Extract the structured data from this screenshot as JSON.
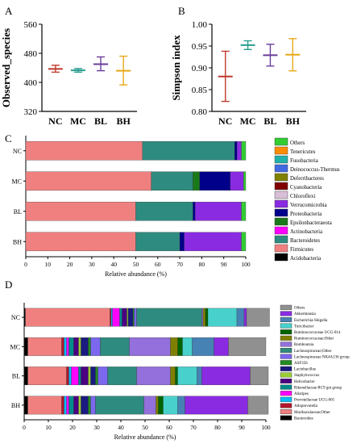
{
  "panel_labels": {
    "A": "A",
    "B": "B",
    "C": "C",
    "D": "D"
  },
  "chart_data": [
    {
      "id": "A",
      "type": "errorbar",
      "ylabel": "Observed_species",
      "categories": [
        "NC",
        "MC",
        "BL",
        "BH"
      ],
      "colors": [
        "#c0392b",
        "#2a9d8f",
        "#6a3d9a",
        "#e6a817"
      ],
      "mean": [
        437,
        433,
        450,
        432
      ],
      "err_low": [
        428,
        428,
        432,
        393
      ],
      "err_high": [
        447,
        438,
        470,
        472
      ],
      "ylim": [
        320,
        560
      ],
      "yticks": [
        "320",
        "400",
        "480",
        "560"
      ]
    },
    {
      "id": "B",
      "type": "errorbar",
      "ylabel": "Simpson index",
      "categories": [
        "NC",
        "MC",
        "BL",
        "BH"
      ],
      "colors": [
        "#c0392b",
        "#2a9d8f",
        "#6a3d9a",
        "#e6a817"
      ],
      "mean": [
        0.88,
        0.952,
        0.929,
        0.93
      ],
      "err_low": [
        0.823,
        0.942,
        0.904,
        0.893
      ],
      "err_high": [
        0.938,
        0.962,
        0.954,
        0.967
      ],
      "ylim": [
        0.8,
        1.0
      ],
      "yticks": [
        "0.80",
        "0.85",
        "0.90",
        "0.95",
        "1.00"
      ]
    },
    {
      "id": "C",
      "type": "bar",
      "stacked": true,
      "orientation": "horizontal",
      "xlabel": "Relative abundance (%)",
      "xlim": [
        0,
        100
      ],
      "xticks": [
        "0",
        "10",
        "20",
        "30",
        "40",
        "50",
        "60",
        "70",
        "80",
        "90",
        "100"
      ],
      "categories": [
        "NC",
        "MC",
        "BL",
        "BH"
      ],
      "series": [
        {
          "name": "Acidobacteria",
          "color": "#000000",
          "values": [
            0,
            0,
            0,
            0
          ]
        },
        {
          "name": "Firmicutes",
          "color": "#f08080",
          "values": [
            53,
            57,
            50,
            50
          ]
        },
        {
          "name": "Bacteroidetes",
          "color": "#2e8b7f",
          "values": [
            42,
            19,
            26,
            20
          ]
        },
        {
          "name": "Actinobacteria",
          "color": "#ff00ff",
          "values": [
            0,
            0,
            0,
            0
          ]
        },
        {
          "name": "Epsilonbacteraeota",
          "color": "#1a7a1a",
          "values": [
            0,
            3,
            0,
            0
          ]
        },
        {
          "name": "Proteobacteria",
          "color": "#00008b",
          "values": [
            1,
            14,
            1,
            2
          ]
        },
        {
          "name": "Verrucomicrobia",
          "color": "#8a2be2",
          "values": [
            2,
            6,
            21,
            26
          ]
        },
        {
          "name": "Chloroflexi",
          "color": "#d8bfd8",
          "values": [
            0,
            0,
            0,
            0
          ]
        },
        {
          "name": "Cyanobacteria",
          "color": "#800000",
          "values": [
            0,
            0,
            0,
            0
          ]
        },
        {
          "name": "Deferribacteres",
          "color": "#808000",
          "values": [
            0,
            0,
            0,
            0
          ]
        },
        {
          "name": "Deinococcus-Thermus",
          "color": "#4169e1",
          "values": [
            0,
            0,
            0,
            0
          ]
        },
        {
          "name": "Fusobacteria",
          "color": "#20b2aa",
          "values": [
            0,
            0,
            0,
            0
          ]
        },
        {
          "name": "Tenericutes",
          "color": "#ff8c00",
          "values": [
            0,
            0,
            0,
            0
          ]
        },
        {
          "name": "Others",
          "color": "#32cd32",
          "values": [
            2,
            1,
            2,
            2
          ]
        }
      ],
      "legend_order": [
        "Others",
        "Tenericutes",
        "Fusobacteria",
        "Deinococcus-Thermus",
        "Deferribacteres",
        "Cyanobacteria",
        "Chloroflexi",
        "Verrucomicrobia",
        "Proteobacteria",
        "Epsilonbacteraeota",
        "Actinobacteria",
        "Bacteroidetes",
        "Firmicutes",
        "Acidobacteria"
      ],
      "legend_position": "right"
    },
    {
      "id": "D",
      "type": "bar",
      "stacked": true,
      "orientation": "horizontal",
      "xlabel": "Relative abundance (%)",
      "xlim": [
        0,
        100
      ],
      "xticks": [
        "0",
        "10",
        "20",
        "30",
        "40",
        "50",
        "60",
        "70",
        "80",
        "90",
        "100"
      ],
      "categories": [
        "NC",
        "MC",
        "BL",
        "BH"
      ],
      "series": [
        {
          "name": "Bacteroides",
          "color": "#000000",
          "values": [
            0.5,
            1.5,
            1.5,
            1.5
          ]
        },
        {
          "name": "Muribaculaceae;Other",
          "color": "#f08080",
          "values": [
            35,
            14,
            16,
            14
          ]
        },
        {
          "name": "Alloprevotella",
          "color": "#b2182b",
          "values": [
            0.5,
            1,
            1,
            1
          ]
        },
        {
          "name": "Prevotellaceae UCG-001",
          "color": "#00bfff",
          "values": [
            0.5,
            1,
            1,
            1
          ]
        },
        {
          "name": "Alistipes",
          "color": "#ff00ff",
          "values": [
            3,
            1,
            3,
            1
          ]
        },
        {
          "name": "Rikenellaceae RC9 gut group",
          "color": "#008b8b",
          "values": [
            1,
            2,
            1,
            2
          ]
        },
        {
          "name": "Helicobacter",
          "color": "#4b0082",
          "values": [
            2,
            2,
            3,
            2
          ]
        },
        {
          "name": "Staphylococcus",
          "color": "#9acd32",
          "values": [
            0.5,
            1,
            1,
            1
          ]
        },
        {
          "name": "Lactobacillus",
          "color": "#1a1a80",
          "values": [
            2,
            3,
            2,
            3
          ]
        },
        {
          "name": "ASF356",
          "color": "#228b22",
          "values": [
            0.5,
            1,
            1,
            1
          ]
        },
        {
          "name": "Lachnospiraceae NK4A136 group",
          "color": "#7b68ee",
          "values": [
            1,
            4,
            4,
            2
          ]
        },
        {
          "name": "Lachnospiraceae;Other",
          "color": "#2e8b7f",
          "values": [
            27,
            12,
            12,
            20
          ]
        },
        {
          "name": "Romboutsia",
          "color": "#9370db",
          "values": [
            0.5,
            17,
            14,
            5
          ]
        },
        {
          "name": "Ruminococcaceae;Other",
          "color": "#808000",
          "values": [
            1,
            3,
            2,
            1
          ]
        },
        {
          "name": "Ruminococcaceae UCG-014",
          "color": "#006400",
          "values": [
            1,
            2,
            1,
            2
          ]
        },
        {
          "name": "Turicibacter",
          "color": "#48d1cc",
          "values": [
            12,
            4,
            8,
            6
          ]
        },
        {
          "name": "Escherichia-Shigella",
          "color": "#4682b4",
          "values": [
            3,
            9,
            2,
            3
          ]
        },
        {
          "name": "Akkermansia",
          "color": "#8a2be2",
          "values": [
            1,
            6,
            20,
            26
          ]
        },
        {
          "name": "Others",
          "color": "#909090",
          "values": [
            9.5,
            15.5,
            7.5,
            8.5
          ]
        }
      ],
      "legend_order": [
        "Others",
        "Akkermansia",
        "Escherichia-Shigella",
        "Turicibacter",
        "Ruminococcaceae UCG-014",
        "Ruminococcaceae;Other",
        "Romboutsia",
        "Lachnospiraceae;Other",
        "Lachnospiraceae NK4A136 group",
        "ASF356",
        "Lactobacillus",
        "Staphylococcus",
        "Helicobacter",
        "Rikenellaceae RC9 gut group",
        "Alistipes",
        "Prevotellaceae UCG-001",
        "Alloprevotella",
        "Muribaculaceae;Other",
        "Bacteroides"
      ],
      "legend_position": "right"
    }
  ]
}
